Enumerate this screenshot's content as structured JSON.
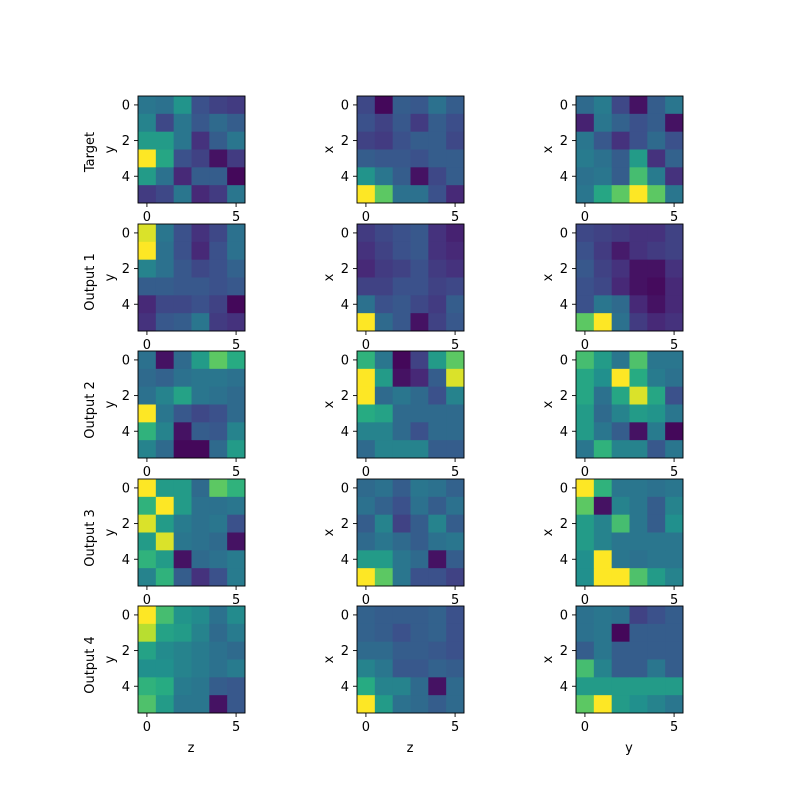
{
  "row_labels": [
    "Target",
    "Output 1",
    "Output 2",
    "Output 3",
    "Output 4"
  ],
  "col_ylabels": [
    "y",
    "x",
    "x"
  ],
  "col_xlabels": [
    "z",
    "z",
    "y"
  ],
  "chart_data": {
    "type": "heatmap",
    "colormap": "viridis",
    "vmin": 0,
    "vmax": 1,
    "grid": false,
    "axis_ticks": [
      0,
      2,
      4
    ],
    "x_ticks": [
      0,
      5
    ],
    "panels": [
      {
        "row": "Target",
        "col": 0,
        "values": [
          [
            0.4,
            0.38,
            0.52,
            0.25,
            0.2,
            0.18
          ],
          [
            0.45,
            0.22,
            0.4,
            0.28,
            0.35,
            0.3
          ],
          [
            0.55,
            0.55,
            0.4,
            0.15,
            0.3,
            0.4
          ],
          [
            1.0,
            0.6,
            0.25,
            0.2,
            0.05,
            0.18
          ],
          [
            0.55,
            0.38,
            0.12,
            0.3,
            0.3,
            0.02
          ],
          [
            0.18,
            0.22,
            0.4,
            0.12,
            0.18,
            0.4
          ]
        ]
      },
      {
        "row": "Target",
        "col": 1,
        "values": [
          [
            0.22,
            0.02,
            0.3,
            0.28,
            0.38,
            0.3
          ],
          [
            0.25,
            0.2,
            0.28,
            0.18,
            0.3,
            0.24
          ],
          [
            0.2,
            0.18,
            0.25,
            0.3,
            0.3,
            0.22
          ],
          [
            0.3,
            0.28,
            0.28,
            0.25,
            0.3,
            0.3
          ],
          [
            0.52,
            0.4,
            0.3,
            0.05,
            0.22,
            0.3
          ],
          [
            1.0,
            0.75,
            0.38,
            0.38,
            0.25,
            0.12
          ]
        ]
      },
      {
        "row": "Target",
        "col": 2,
        "values": [
          [
            0.35,
            0.42,
            0.22,
            0.05,
            0.3,
            0.4
          ],
          [
            0.1,
            0.4,
            0.32,
            0.25,
            0.3,
            0.05
          ],
          [
            0.4,
            0.28,
            0.15,
            0.25,
            0.35,
            0.25
          ],
          [
            0.42,
            0.38,
            0.3,
            0.55,
            0.15,
            0.32
          ],
          [
            0.38,
            0.4,
            0.3,
            0.7,
            0.42,
            0.15
          ],
          [
            0.4,
            0.6,
            0.75,
            1.0,
            0.75,
            0.4
          ]
        ]
      },
      {
        "row": "Output 1",
        "col": 0,
        "values": [
          [
            0.95,
            0.4,
            0.25,
            0.15,
            0.22,
            0.38
          ],
          [
            1.0,
            0.38,
            0.25,
            0.12,
            0.25,
            0.38
          ],
          [
            0.45,
            0.38,
            0.28,
            0.22,
            0.25,
            0.32
          ],
          [
            0.3,
            0.3,
            0.28,
            0.28,
            0.25,
            0.28
          ],
          [
            0.12,
            0.22,
            0.22,
            0.25,
            0.2,
            0.02
          ],
          [
            0.15,
            0.28,
            0.3,
            0.4,
            0.18,
            0.15
          ]
        ]
      },
      {
        "row": "Output 1",
        "col": 1,
        "values": [
          [
            0.18,
            0.22,
            0.25,
            0.28,
            0.15,
            0.1
          ],
          [
            0.15,
            0.2,
            0.25,
            0.28,
            0.15,
            0.12
          ],
          [
            0.12,
            0.18,
            0.2,
            0.25,
            0.18,
            0.15
          ],
          [
            0.2,
            0.2,
            0.25,
            0.25,
            0.2,
            0.22
          ],
          [
            0.38,
            0.25,
            0.28,
            0.22,
            0.18,
            0.3
          ],
          [
            1.0,
            0.35,
            0.28,
            0.05,
            0.2,
            0.28
          ]
        ]
      },
      {
        "row": "Output 1",
        "col": 2,
        "values": [
          [
            0.22,
            0.2,
            0.18,
            0.15,
            0.15,
            0.2
          ],
          [
            0.25,
            0.18,
            0.08,
            0.15,
            0.18,
            0.2
          ],
          [
            0.28,
            0.2,
            0.15,
            0.05,
            0.05,
            0.15
          ],
          [
            0.25,
            0.22,
            0.12,
            0.05,
            0.03,
            0.12
          ],
          [
            0.25,
            0.4,
            0.35,
            0.12,
            0.05,
            0.12
          ],
          [
            0.75,
            1.0,
            0.38,
            0.18,
            0.12,
            0.15
          ]
        ]
      },
      {
        "row": "Output 2",
        "col": 0,
        "values": [
          [
            0.38,
            0.05,
            0.35,
            0.55,
            0.75,
            0.62
          ],
          [
            0.35,
            0.32,
            0.38,
            0.4,
            0.4,
            0.38
          ],
          [
            0.38,
            0.45,
            0.58,
            0.4,
            0.38,
            0.35
          ],
          [
            1.0,
            0.4,
            0.28,
            0.22,
            0.25,
            0.35
          ],
          [
            0.65,
            0.45,
            0.05,
            0.3,
            0.28,
            0.45
          ],
          [
            0.45,
            0.35,
            0.02,
            0.02,
            0.35,
            0.55
          ]
        ]
      },
      {
        "row": "Output 2",
        "col": 1,
        "values": [
          [
            0.65,
            0.4,
            0.02,
            0.2,
            0.55,
            0.75
          ],
          [
            1.0,
            0.55,
            0.05,
            0.12,
            0.3,
            0.95
          ],
          [
            1.0,
            0.35,
            0.4,
            0.35,
            0.25,
            0.45
          ],
          [
            0.62,
            0.58,
            0.35,
            0.35,
            0.35,
            0.35
          ],
          [
            0.45,
            0.45,
            0.35,
            0.25,
            0.35,
            0.35
          ],
          [
            0.35,
            0.45,
            0.45,
            0.45,
            0.3,
            0.3
          ]
        ]
      },
      {
        "row": "Output 2",
        "col": 2,
        "values": [
          [
            0.7,
            0.55,
            0.4,
            0.72,
            0.4,
            0.4
          ],
          [
            0.6,
            0.5,
            1.0,
            0.62,
            0.42,
            0.38
          ],
          [
            0.6,
            0.38,
            0.6,
            0.95,
            0.6,
            0.25
          ],
          [
            0.55,
            0.35,
            0.45,
            0.55,
            0.52,
            0.4
          ],
          [
            0.55,
            0.4,
            0.3,
            0.05,
            0.42,
            0.02
          ],
          [
            0.4,
            0.65,
            0.45,
            0.45,
            0.28,
            0.4
          ]
        ]
      },
      {
        "row": "Output 3",
        "col": 0,
        "values": [
          [
            1.0,
            0.55,
            0.55,
            0.35,
            0.75,
            0.65
          ],
          [
            0.65,
            1.0,
            0.55,
            0.38,
            0.38,
            0.4
          ],
          [
            0.95,
            0.55,
            0.42,
            0.38,
            0.4,
            0.25
          ],
          [
            0.55,
            0.95,
            0.4,
            0.38,
            0.35,
            0.05
          ],
          [
            0.65,
            0.55,
            0.05,
            0.35,
            0.38,
            0.42
          ],
          [
            0.45,
            0.65,
            0.3,
            0.15,
            0.25,
            0.42
          ]
        ]
      },
      {
        "row": "Output 3",
        "col": 1,
        "values": [
          [
            0.35,
            0.38,
            0.3,
            0.4,
            0.38,
            0.32
          ],
          [
            0.38,
            0.32,
            0.25,
            0.38,
            0.3,
            0.38
          ],
          [
            0.3,
            0.45,
            0.2,
            0.3,
            0.45,
            0.3
          ],
          [
            0.35,
            0.4,
            0.35,
            0.3,
            0.38,
            0.4
          ],
          [
            0.55,
            0.55,
            0.4,
            0.35,
            0.05,
            0.3
          ],
          [
            1.0,
            0.75,
            0.4,
            0.25,
            0.25,
            0.2
          ]
        ]
      },
      {
        "row": "Output 3",
        "col": 2,
        "values": [
          [
            1.0,
            0.65,
            0.4,
            0.4,
            0.38,
            0.4
          ],
          [
            0.75,
            0.05,
            0.45,
            0.4,
            0.3,
            0.45
          ],
          [
            0.55,
            0.45,
            0.7,
            0.4,
            0.3,
            0.5
          ],
          [
            0.55,
            0.45,
            0.4,
            0.4,
            0.4,
            0.4
          ],
          [
            0.5,
            1.0,
            0.4,
            0.38,
            0.4,
            0.4
          ],
          [
            0.5,
            1.0,
            1.0,
            0.72,
            0.55,
            0.45
          ]
        ]
      },
      {
        "row": "Output 4",
        "col": 0,
        "values": [
          [
            1.0,
            0.7,
            0.52,
            0.48,
            0.38,
            0.48
          ],
          [
            0.9,
            0.58,
            0.55,
            0.45,
            0.35,
            0.42
          ],
          [
            0.58,
            0.48,
            0.45,
            0.42,
            0.38,
            0.35
          ],
          [
            0.5,
            0.5,
            0.45,
            0.42,
            0.38,
            0.42
          ],
          [
            0.65,
            0.62,
            0.42,
            0.4,
            0.3,
            0.28
          ],
          [
            0.72,
            0.55,
            0.4,
            0.4,
            0.05,
            0.28
          ]
        ]
      },
      {
        "row": "Output 4",
        "col": 1,
        "values": [
          [
            0.32,
            0.3,
            0.3,
            0.3,
            0.32,
            0.25
          ],
          [
            0.32,
            0.3,
            0.25,
            0.3,
            0.32,
            0.25
          ],
          [
            0.35,
            0.35,
            0.3,
            0.3,
            0.28,
            0.25
          ],
          [
            0.45,
            0.4,
            0.28,
            0.28,
            0.32,
            0.3
          ],
          [
            0.62,
            0.45,
            0.45,
            0.35,
            0.05,
            0.35
          ],
          [
            1.0,
            0.55,
            0.38,
            0.35,
            0.3,
            0.35
          ]
        ]
      },
      {
        "row": "Output 4",
        "col": 2,
        "values": [
          [
            0.38,
            0.4,
            0.38,
            0.2,
            0.25,
            0.3
          ],
          [
            0.38,
            0.4,
            0.02,
            0.3,
            0.3,
            0.3
          ],
          [
            0.3,
            0.4,
            0.3,
            0.3,
            0.3,
            0.3
          ],
          [
            0.7,
            0.45,
            0.3,
            0.3,
            0.4,
            0.3
          ],
          [
            0.55,
            0.55,
            0.55,
            0.55,
            0.55,
            0.55
          ],
          [
            0.75,
            1.0,
            0.55,
            0.5,
            0.45,
            0.4
          ]
        ]
      }
    ]
  }
}
